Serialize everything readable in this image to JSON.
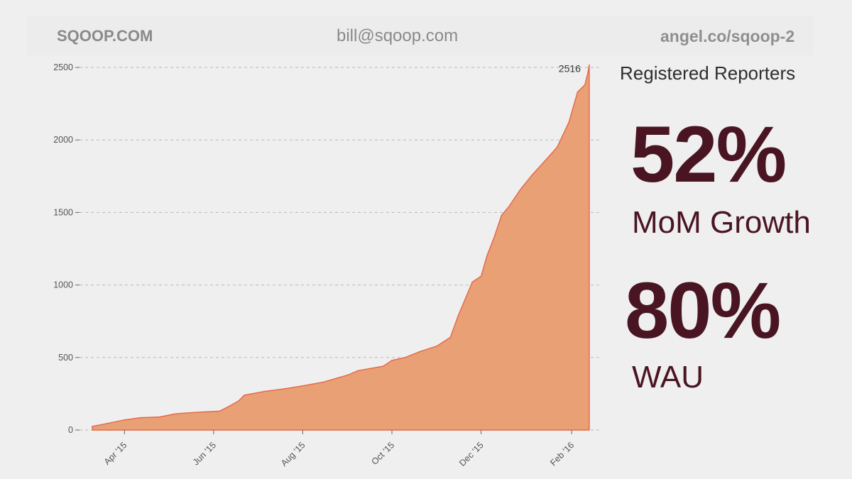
{
  "header": {
    "brand": "SQOOP.COM",
    "email": "bill@sqoop.com",
    "angel": "angel.co/sqoop-2"
  },
  "stats": {
    "series_title": "Registered Reporters",
    "stat1_value": "52%",
    "stat1_label": "MoM Growth",
    "stat2_value": "80%",
    "stat2_label": "WAU"
  },
  "colors": {
    "area_fill": "#eaa075",
    "area_stroke": "#e36a4e",
    "stat_text": "#4a1522",
    "gridline": "#b9b9b9"
  },
  "chart_data": {
    "type": "area",
    "title": "",
    "xlabel": "",
    "ylabel": "",
    "ylim": [
      0,
      2550
    ],
    "yticks": [
      0,
      500,
      1000,
      1500,
      2000,
      2500
    ],
    "xticks": [
      "Apr '15",
      "Jun '15",
      "Aug '15",
      "Oct '15",
      "Dec '15",
      "Feb '16"
    ],
    "xlim": [
      "2015-03-10",
      "2016-02-14"
    ],
    "grid": "horizontal dashed",
    "peak_label": "2516",
    "series": [
      {
        "x": [
          "2015-03-10",
          "2015-03-20",
          "2015-04-01",
          "2015-04-12",
          "2015-04-25",
          "2015-05-05",
          "2015-05-10",
          "2015-05-25",
          "2015-06-05",
          "2015-06-10",
          "2015-06-18",
          "2015-06-22",
          "2015-07-05",
          "2015-07-20",
          "2015-08-01",
          "2015-08-15",
          "2015-09-01",
          "2015-09-08",
          "2015-09-25",
          "2015-10-01",
          "2015-10-10",
          "2015-10-20",
          "2015-11-01",
          "2015-11-10",
          "2015-11-15",
          "2015-11-20",
          "2015-11-25",
          "2015-12-01",
          "2015-12-05",
          "2015-12-10",
          "2015-12-15",
          "2015-12-20",
          "2015-12-28",
          "2016-01-05",
          "2016-01-15",
          "2016-01-22",
          "2016-01-30",
          "2016-02-05",
          "2016-02-10",
          "2016-02-12",
          "2016-02-13"
        ],
        "values": [
          25,
          45,
          70,
          85,
          90,
          110,
          115,
          125,
          130,
          155,
          200,
          240,
          265,
          285,
          305,
          330,
          380,
          410,
          440,
          480,
          500,
          540,
          580,
          640,
          780,
          900,
          1020,
          1060,
          1200,
          1330,
          1480,
          1540,
          1660,
          1760,
          1870,
          1950,
          2120,
          2330,
          2380,
          2460,
          2516
        ]
      }
    ]
  }
}
